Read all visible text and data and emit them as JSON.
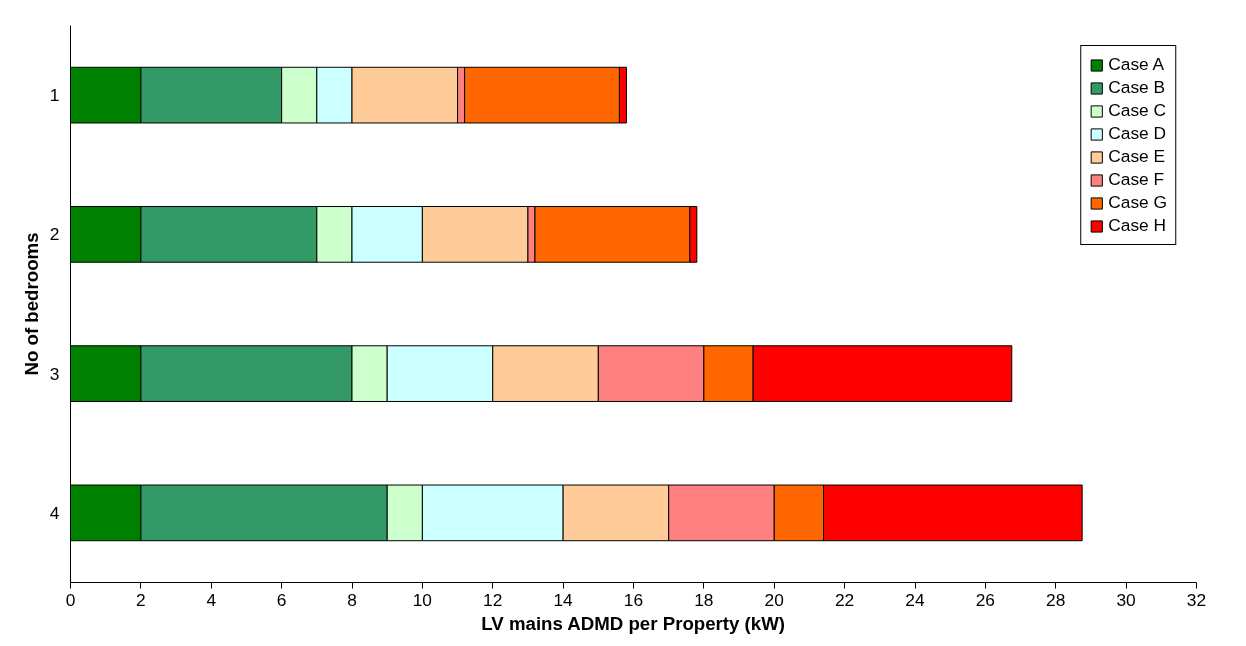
{
  "chart_data": {
    "type": "bar",
    "orientation": "horizontal",
    "stacked": true,
    "xlabel": "LV mains ADMD per Property (kW)",
    "ylabel": "No of bedrooms",
    "categories": [
      "1",
      "2",
      "3",
      "4"
    ],
    "xlim": [
      0,
      32
    ],
    "xticks": [
      0,
      2,
      4,
      6,
      8,
      10,
      12,
      14,
      16,
      18,
      20,
      22,
      24,
      26,
      28,
      30,
      32
    ],
    "grid": false,
    "legend": "top right",
    "series": [
      {
        "name": "Case A",
        "color": "#008000",
        "values": [
          2,
          2,
          2,
          2
        ]
      },
      {
        "name": "Case B",
        "color": "#339966",
        "values": [
          4,
          5,
          6,
          7
        ]
      },
      {
        "name": "Case C",
        "color": "#ccffcc",
        "values": [
          1,
          1,
          1,
          1
        ]
      },
      {
        "name": "Case D",
        "color": "#ccffff",
        "values": [
          1,
          2,
          3,
          4
        ]
      },
      {
        "name": "Case E",
        "color": "#ffcc99",
        "values": [
          3,
          3,
          3,
          3
        ]
      },
      {
        "name": "Case F",
        "color": "#ff8080",
        "values": [
          0.2,
          0.2,
          3,
          3
        ]
      },
      {
        "name": "Case G",
        "color": "#ff6600",
        "values": [
          4.4,
          4.4,
          1.4,
          1.4
        ]
      },
      {
        "name": "Case H",
        "color": "#ff0000",
        "values": [
          0.2,
          0.2,
          7.35,
          7.35
        ]
      }
    ]
  }
}
